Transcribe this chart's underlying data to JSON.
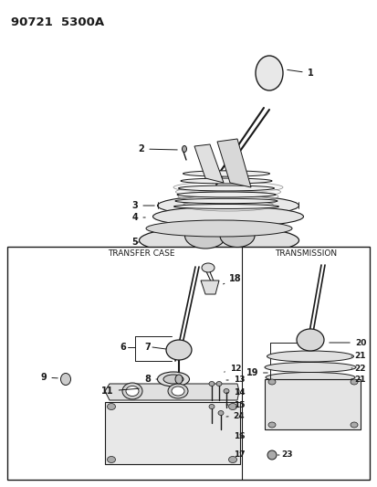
{
  "title": "90721  5300A",
  "bg": "#ffffff",
  "lc": "#1a1a1a",
  "figsize": [
    4.14,
    5.33
  ],
  "dpi": 100
}
